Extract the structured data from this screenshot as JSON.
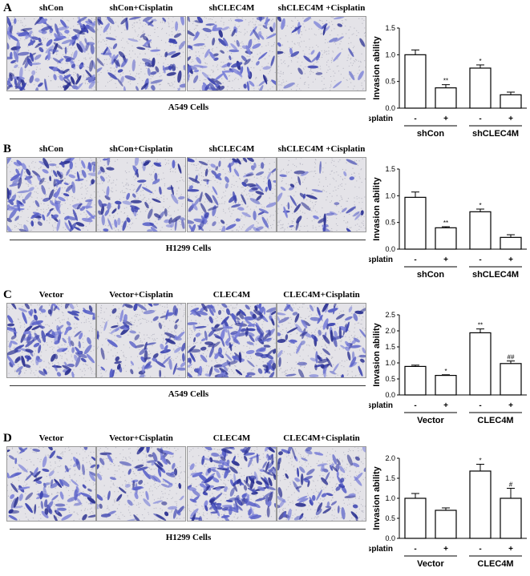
{
  "panels": [
    {
      "letter": "A",
      "images": [
        "shCon",
        "shCon+Cisplatin",
        "shCLEC4M",
        "shCLEC4M +Cisplatin"
      ],
      "cells": "A549 Cells",
      "density": [
        0.9,
        0.45,
        0.6,
        0.2
      ]
    },
    {
      "letter": "B",
      "images": [
        "shCon",
        "shCon+Cisplatin",
        "shCLEC4M",
        "shCLEC4M +Cisplatin"
      ],
      "cells": "H1299 Cells",
      "density": [
        0.75,
        0.45,
        0.55,
        0.25
      ]
    },
    {
      "letter": "C",
      "images": [
        "Vector",
        "Vector+Cisplatin",
        "CLEC4M",
        "CLEC4M+Cisplatin"
      ],
      "cells": "A549 Cells",
      "density": [
        0.7,
        0.5,
        1.0,
        0.6
      ]
    },
    {
      "letter": "D",
      "images": [
        "Vector",
        "Vector+Cisplatin",
        "CLEC4M",
        "CLEC4M+Cisplatin"
      ],
      "cells": "H1299 Cells",
      "density": [
        0.55,
        0.45,
        1.0,
        0.5
      ]
    }
  ],
  "chart_data": [
    {
      "type": "bar",
      "ylabel": "Invasion ability",
      "ylim": [
        0,
        1.5
      ],
      "yticks": [
        "0.0",
        "0.5",
        "1.0",
        "1.5"
      ],
      "row_label": "Cisplatin",
      "treatment": [
        "-",
        "+",
        "-",
        "+"
      ],
      "groups": [
        "shCon",
        "shCLEC4M"
      ],
      "values": [
        1.0,
        0.38,
        0.75,
        0.25
      ],
      "errors": [
        0.09,
        0.06,
        0.06,
        0.05
      ],
      "significance": [
        "",
        "**",
        "*",
        ""
      ]
    },
    {
      "type": "bar",
      "ylabel": "Invasion ability",
      "ylim": [
        0,
        1.5
      ],
      "yticks": [
        "0.0",
        "0.5",
        "1.0",
        "1.5"
      ],
      "row_label": "Cisplatin",
      "treatment": [
        "-",
        "+",
        "-",
        "+"
      ],
      "groups": [
        "shCon",
        "shCLEC4M"
      ],
      "values": [
        0.97,
        0.4,
        0.7,
        0.22
      ],
      "errors": [
        0.1,
        0.02,
        0.05,
        0.05
      ],
      "significance": [
        "",
        "**",
        "*",
        ""
      ]
    },
    {
      "type": "bar",
      "ylabel": "Invasion ability",
      "ylim": [
        0,
        2.5
      ],
      "yticks": [
        "0.0",
        "0.5",
        "1.0",
        "1.5",
        "2.0",
        "2.5"
      ],
      "row_label": "Cisplatin",
      "treatment": [
        "-",
        "+",
        "-",
        "+"
      ],
      "groups": [
        "Vector",
        "CLEC4M"
      ],
      "values": [
        0.89,
        0.61,
        1.94,
        0.98
      ],
      "errors": [
        0.04,
        0.02,
        0.12,
        0.08
      ],
      "significance": [
        "",
        "*",
        "**",
        "##"
      ]
    },
    {
      "type": "bar",
      "ylabel": "Invasion ability",
      "ylim": [
        0,
        2.0
      ],
      "yticks": [
        "0.0",
        "0.5",
        "1.0",
        "1.5",
        "2.0"
      ],
      "row_label": "Cisplatin",
      "treatment": [
        "-",
        "+",
        "-",
        "+"
      ],
      "groups": [
        "Vector",
        "CLEC4M"
      ],
      "values": [
        1.0,
        0.7,
        1.68,
        1.0
      ],
      "errors": [
        0.12,
        0.06,
        0.17,
        0.25
      ],
      "significance": [
        "",
        "",
        "*",
        "#"
      ]
    }
  ]
}
